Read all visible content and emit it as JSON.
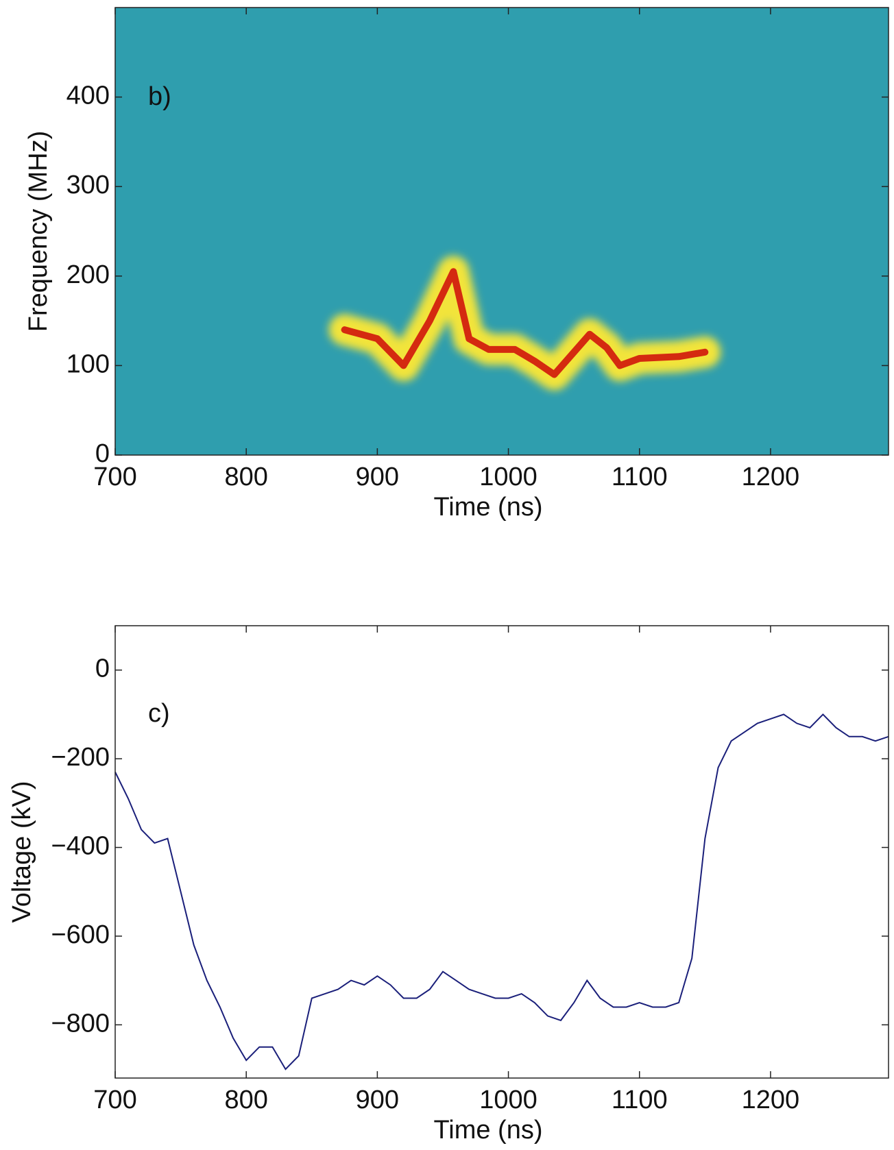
{
  "chart_data": [
    {
      "type": "spectrogram",
      "annotation": "b)",
      "x_label": "Time (ns)",
      "y_label": "Frequency (MHz)",
      "background": "#2f9eae",
      "color": "#d42a10",
      "halo_color": "#f2e43a",
      "x": [
        875,
        900,
        920,
        940,
        958,
        970,
        985,
        1005,
        1020,
        1035,
        1050,
        1062,
        1075,
        1085,
        1100,
        1130,
        1150
      ],
      "values": [
        140,
        130,
        100,
        150,
        205,
        130,
        118,
        118,
        105,
        90,
        115,
        135,
        120,
        100,
        108,
        110,
        115
      ],
      "xlim": [
        700,
        1290
      ],
      "xticks": [
        700,
        800,
        900,
        1000,
        1100,
        1200
      ],
      "ylim": [
        0,
        500
      ],
      "yticks": [
        0,
        100,
        200,
        300,
        400
      ]
    },
    {
      "type": "line",
      "annotation": "c)",
      "x_label": "Time (ns)",
      "y_label": "Voltage (kV)",
      "color": "#1a1f7a",
      "x": [
        700,
        710,
        720,
        730,
        740,
        750,
        760,
        770,
        780,
        790,
        800,
        810,
        820,
        830,
        840,
        850,
        860,
        870,
        880,
        890,
        900,
        910,
        920,
        930,
        940,
        950,
        960,
        970,
        980,
        990,
        1000,
        1010,
        1020,
        1030,
        1040,
        1050,
        1060,
        1070,
        1080,
        1090,
        1100,
        1110,
        1120,
        1130,
        1140,
        1150,
        1160,
        1170,
        1180,
        1190,
        1200,
        1210,
        1220,
        1230,
        1240,
        1250,
        1260,
        1270,
        1280,
        1290
      ],
      "values": [
        -230,
        -290,
        -360,
        -390,
        -380,
        -500,
        -620,
        -700,
        -760,
        -830,
        -880,
        -850,
        -850,
        -900,
        -870,
        -740,
        -730,
        -720,
        -700,
        -710,
        -690,
        -710,
        -740,
        -740,
        -720,
        -680,
        -700,
        -720,
        -730,
        -740,
        -740,
        -730,
        -750,
        -780,
        -790,
        -750,
        -700,
        -740,
        -760,
        -760,
        -750,
        -760,
        -760,
        -750,
        -650,
        -380,
        -220,
        -160,
        -140,
        -120,
        -110,
        -100,
        -120,
        -130,
        -100,
        -130,
        -150,
        -150,
        -160,
        -150
      ],
      "xlim": [
        700,
        1290
      ],
      "xticks": [
        700,
        800,
        900,
        1000,
        1100,
        1200
      ],
      "ylim": [
        -920,
        100
      ],
      "yticks": [
        0,
        {
          "value": -200,
          "label": "−200"
        },
        {
          "value": -400,
          "label": "−400"
        },
        {
          "value": -600,
          "label": "−600"
        },
        {
          "value": -800,
          "label": "−800"
        }
      ]
    }
  ]
}
